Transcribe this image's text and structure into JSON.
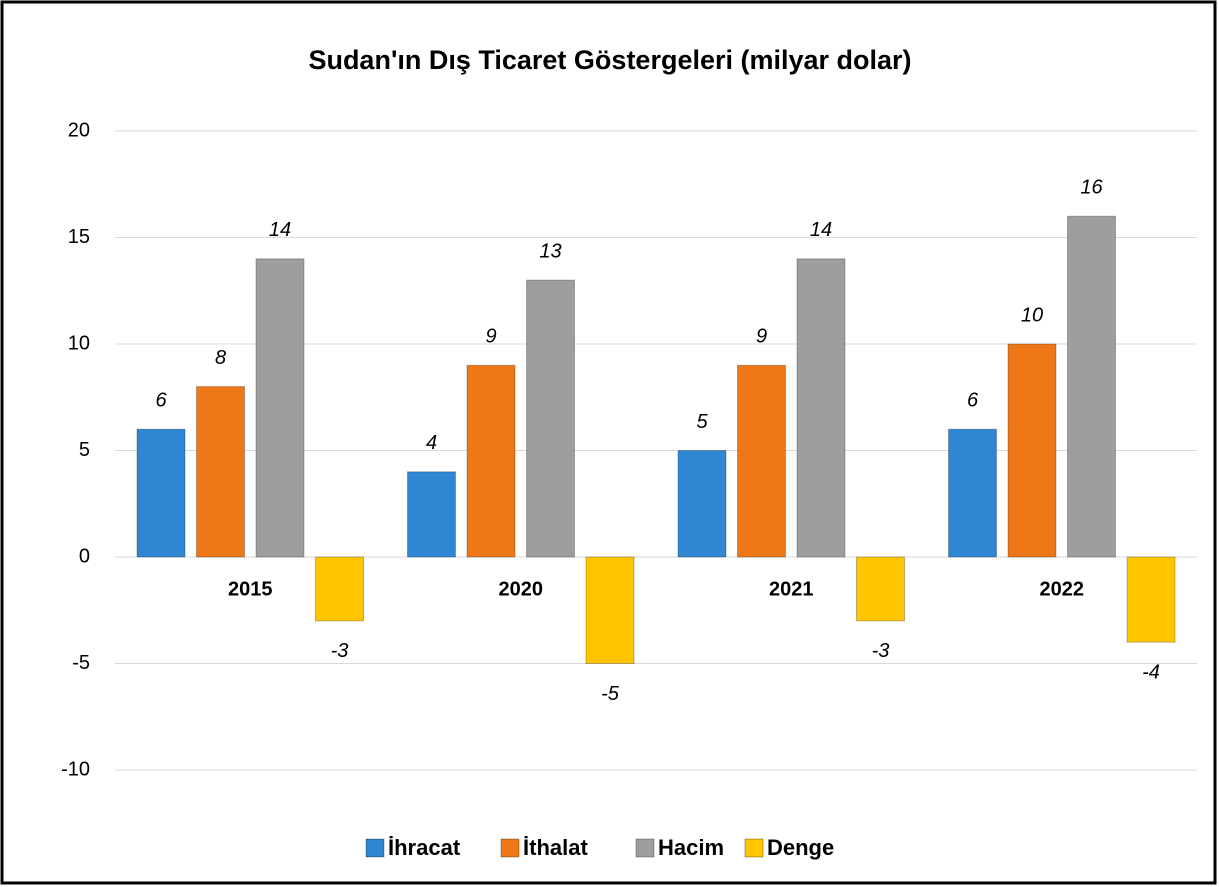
{
  "chart_data": {
    "type": "bar",
    "title": "Sudan'ın Dış Ticaret Göstergeleri  (milyar dolar)",
    "categories": [
      "2015",
      "2020",
      "2021",
      "2022"
    ],
    "series": [
      {
        "name": "İhracat",
        "color": "#2f86d3",
        "values": [
          6,
          4,
          5,
          6
        ]
      },
      {
        "name": "İthalat",
        "color": "#ee7718",
        "values": [
          8,
          9,
          9,
          10
        ]
      },
      {
        "name": "Hacim",
        "color": "#9e9e9e",
        "values": [
          14,
          13,
          14,
          16
        ]
      },
      {
        "name": "Denge",
        "color": "#ffc600",
        "values": [
          -3,
          -5,
          -3,
          -4
        ]
      }
    ],
    "ylim": [
      -10,
      20
    ],
    "yticks": [
      -10,
      -5,
      0,
      5,
      10,
      15,
      20
    ],
    "grid": true,
    "legend": "bottom"
  }
}
